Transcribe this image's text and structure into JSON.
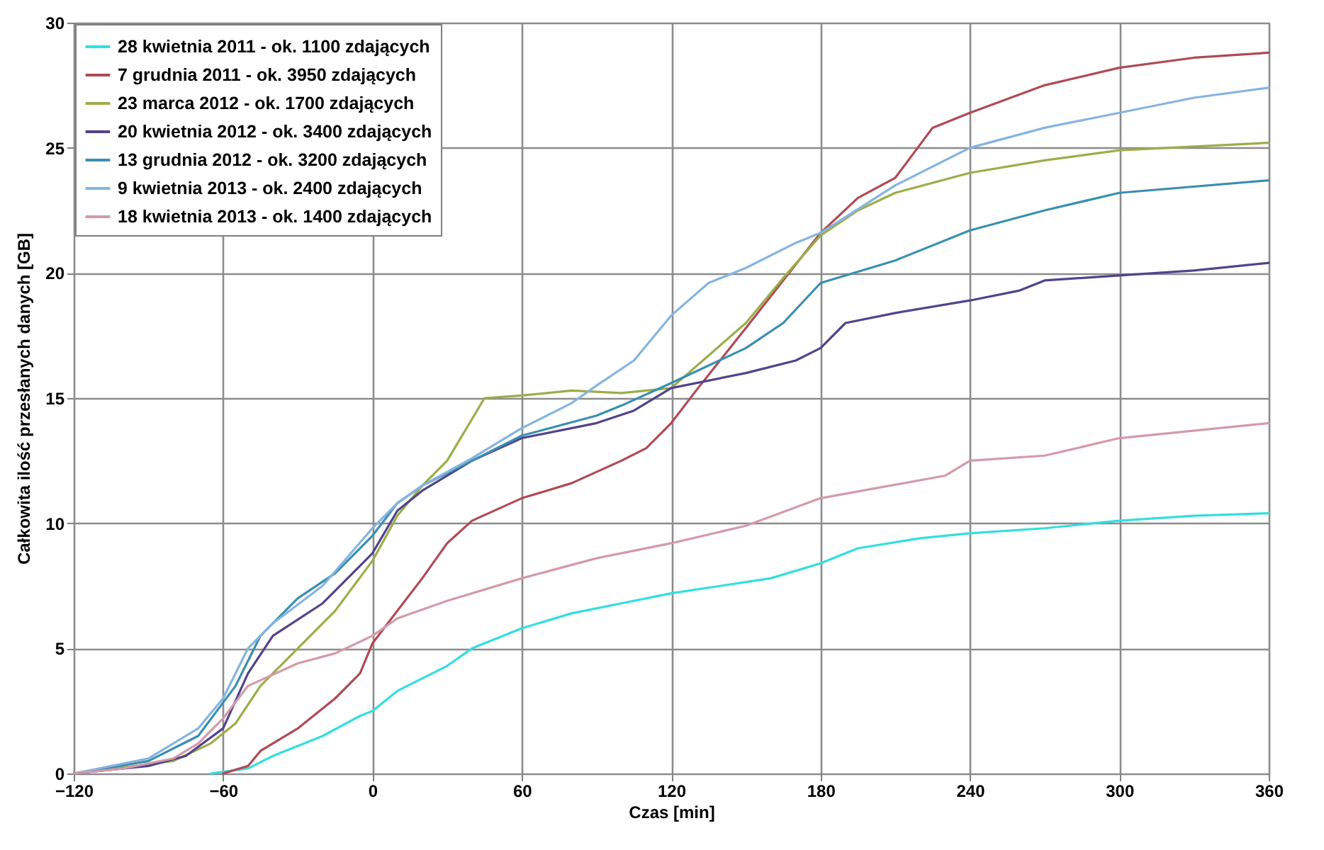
{
  "chart_data": {
    "type": "line",
    "xlabel": "Czas [min]",
    "ylabel": "Całkowita ilość przesłanych danych [GB]",
    "xlim": [
      -120,
      360
    ],
    "xticks": [
      -120,
      -60,
      0,
      60,
      120,
      180,
      240,
      300,
      360
    ],
    "ylim": [
      0,
      30
    ],
    "yticks": [
      0,
      5,
      10,
      15,
      20,
      25,
      30
    ],
    "grid": true,
    "legend": "top left",
    "marker": "none",
    "line_style": "solid",
    "series": [
      {
        "name": "28 kwietnia 2011 - ok. 1100 zdających",
        "color": "#33dede",
        "x": [
          -65,
          -50,
          -40,
          -20,
          -5,
          0,
          10,
          30,
          40,
          60,
          80,
          100,
          120,
          140,
          160,
          180,
          195,
          220,
          240,
          270,
          300,
          330,
          360
        ],
        "values": [
          0,
          0.2,
          0.7,
          1.5,
          2.3,
          2.5,
          3.3,
          4.3,
          5.0,
          5.8,
          6.4,
          6.8,
          7.2,
          7.5,
          7.8,
          8.4,
          9.0,
          9.4,
          9.6,
          9.8,
          10.1,
          10.3,
          10.4
        ]
      },
      {
        "name": "7 grudnia 2011 - ok. 3950 zdających",
        "color": "#b04a55",
        "x": [
          -60,
          -50,
          -45,
          -30,
          -15,
          -5,
          0,
          10,
          20,
          30,
          40,
          60,
          80,
          100,
          110,
          120,
          130,
          150,
          180,
          195,
          210,
          225,
          240,
          270,
          300,
          330,
          360
        ],
        "values": [
          0,
          0.3,
          0.9,
          1.8,
          3.0,
          4.0,
          5.2,
          6.5,
          7.8,
          9.2,
          10.1,
          11.0,
          11.6,
          12.5,
          13.0,
          14.0,
          15.3,
          17.8,
          21.6,
          23.0,
          23.8,
          25.8,
          26.4,
          27.5,
          28.2,
          28.6,
          28.8
        ]
      },
      {
        "name": "23 marca 2012 - ok. 1700 zdających",
        "color": "#9aae4a",
        "x": [
          -120,
          -80,
          -65,
          -55,
          -45,
          -30,
          -15,
          0,
          10,
          20,
          30,
          45,
          60,
          80,
          100,
          120,
          135,
          150,
          165,
          180,
          195,
          210,
          240,
          270,
          300,
          360
        ],
        "values": [
          0,
          0.5,
          1.2,
          2.0,
          3.5,
          5.0,
          6.5,
          8.5,
          10.3,
          11.5,
          12.5,
          15.0,
          15.1,
          15.3,
          15.2,
          15.4,
          16.7,
          18.0,
          19.8,
          21.5,
          22.5,
          23.2,
          24.0,
          24.5,
          24.9,
          25.2
        ]
      },
      {
        "name": "20 kwietnia 2012 - ok. 3400 zdających",
        "color": "#52438c",
        "x": [
          -120,
          -90,
          -75,
          -60,
          -50,
          -40,
          -20,
          0,
          10,
          20,
          40,
          60,
          90,
          105,
          120,
          150,
          170,
          180,
          190,
          210,
          240,
          260,
          270,
          300,
          330,
          360
        ],
        "values": [
          0,
          0.3,
          0.7,
          1.8,
          4.0,
          5.5,
          6.8,
          8.8,
          10.5,
          11.3,
          12.5,
          13.4,
          14.0,
          14.5,
          15.4,
          16.0,
          16.5,
          17.0,
          18.0,
          18.4,
          18.9,
          19.3,
          19.7,
          19.9,
          20.1,
          20.4
        ]
      },
      {
        "name": "13 grudnia 2012 - ok. 3200 zdających",
        "color": "#3a8fb0",
        "x": [
          -120,
          -90,
          -70,
          -55,
          -45,
          -30,
          -15,
          0,
          10,
          20,
          40,
          60,
          90,
          100,
          120,
          150,
          165,
          180,
          210,
          240,
          270,
          300,
          360
        ],
        "values": [
          0,
          0.5,
          1.5,
          3.5,
          5.5,
          7.0,
          8.0,
          9.5,
          10.8,
          11.5,
          12.5,
          13.5,
          14.3,
          14.7,
          15.6,
          17.0,
          18.0,
          19.6,
          20.5,
          21.7,
          22.5,
          23.2,
          23.7
        ]
      },
      {
        "name": "9 kwietnia 2013 - ok. 2400 zdających",
        "color": "#86b4e0",
        "x": [
          -120,
          -90,
          -70,
          -60,
          -50,
          -40,
          -20,
          0,
          10,
          20,
          40,
          60,
          80,
          90,
          105,
          120,
          135,
          150,
          170,
          180,
          210,
          240,
          270,
          300,
          330,
          360
        ],
        "values": [
          0,
          0.6,
          1.8,
          3.0,
          5.0,
          6.0,
          7.5,
          9.8,
          10.8,
          11.5,
          12.6,
          13.8,
          14.8,
          15.5,
          16.5,
          18.3,
          19.6,
          20.2,
          21.2,
          21.6,
          23.5,
          25.0,
          25.8,
          26.4,
          27.0,
          27.4
        ]
      },
      {
        "name": "18 kwietnia 2013 - ok. 1400 zdających",
        "color": "#d49aa8",
        "x": [
          -120,
          -100,
          -80,
          -70,
          -60,
          -50,
          -30,
          -15,
          0,
          10,
          30,
          60,
          90,
          120,
          150,
          180,
          230,
          240,
          270,
          300,
          360
        ],
        "values": [
          0,
          0.2,
          0.6,
          1.2,
          2.2,
          3.5,
          4.4,
          4.8,
          5.5,
          6.2,
          6.9,
          7.8,
          8.6,
          9.2,
          9.9,
          11.0,
          11.9,
          12.5,
          12.7,
          13.4,
          14.0
        ]
      }
    ]
  }
}
